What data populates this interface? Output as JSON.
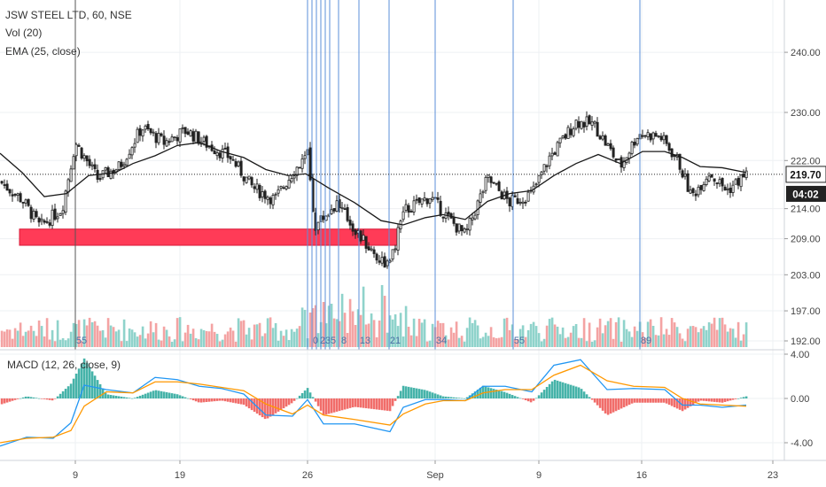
{
  "chart_data": {
    "type": "candlestick",
    "title": "JSW STEEL LTD, 60, NSE",
    "indicators": [
      "Vol (20)",
      "EMA (25, close)"
    ],
    "macd_label": "MACD (12, 26, close, 9)",
    "price_axis_ticks": [
      "240.00",
      "230.00",
      "222.00",
      "214.00",
      "209.00",
      "203.00",
      "197.00",
      "192.00"
    ],
    "price_axis_values": [
      240,
      230,
      222,
      214,
      209,
      203,
      197,
      192
    ],
    "current_price": "219.70",
    "countdown": "04:02",
    "macd_axis_ticks": [
      "4.00",
      "0.00",
      "-4.00"
    ],
    "macd_axis_values": [
      4,
      0,
      -4
    ],
    "x_ticks": [
      "9",
      "19",
      "26",
      "Sep",
      "9",
      "16",
      "23"
    ],
    "x_tick_bars": [
      85,
      203,
      347,
      491,
      608,
      724,
      872
    ],
    "vertical_lines_bars": [
      85,
      347,
      352,
      357,
      362,
      367,
      372,
      382,
      405,
      439,
      491,
      579,
      722
    ],
    "fib_labels": [
      "55",
      "0",
      "2",
      "3",
      "5",
      "8",
      "13",
      "21",
      "34",
      "55",
      "89"
    ],
    "fib_label_bars": [
      92,
      356,
      364,
      370,
      376,
      388,
      412,
      446,
      498,
      586,
      729
    ],
    "red_zone": {
      "x_start_bar": 22,
      "x_end_bar": 449,
      "top_price": 210.6,
      "bottom_price": 207.9
    },
    "price_path": [
      [
        0,
        218.5
      ],
      [
        25,
        215.5
      ],
      [
        45,
        211.0
      ],
      [
        70,
        214.0
      ],
      [
        85,
        225.0
      ],
      [
        110,
        219.0
      ],
      [
        135,
        221.0
      ],
      [
        160,
        227.5
      ],
      [
        185,
        225.0
      ],
      [
        210,
        227.0
      ],
      [
        230,
        225.0
      ],
      [
        260,
        222.5
      ],
      [
        285,
        217.5
      ],
      [
        310,
        215.5
      ],
      [
        330,
        220.0
      ],
      [
        347,
        223.0
      ],
      [
        355,
        211.0
      ],
      [
        380,
        215.0
      ],
      [
        405,
        209.5
      ],
      [
        425,
        206.0
      ],
      [
        440,
        204.5
      ],
      [
        455,
        213.5
      ],
      [
        485,
        216.0
      ],
      [
        505,
        212.5
      ],
      [
        525,
        209.5
      ],
      [
        550,
        219.0
      ],
      [
        575,
        215.0
      ],
      [
        600,
        216.5
      ],
      [
        620,
        222.5
      ],
      [
        650,
        228.5
      ],
      [
        670,
        228.0
      ],
      [
        700,
        221.0
      ],
      [
        720,
        226.5
      ],
      [
        745,
        226.0
      ],
      [
        765,
        222.0
      ],
      [
        780,
        216.0
      ],
      [
        800,
        220.0
      ],
      [
        820,
        217.0
      ],
      [
        842,
        219.7
      ]
    ],
    "ema_path": [
      [
        0,
        223.2
      ],
      [
        25,
        220.0
      ],
      [
        50,
        216.0
      ],
      [
        75,
        216.5
      ],
      [
        100,
        219.5
      ],
      [
        130,
        220.0
      ],
      [
        150,
        221.5
      ],
      [
        175,
        222.8
      ],
      [
        200,
        224.5
      ],
      [
        225,
        225.0
      ],
      [
        250,
        223.5
      ],
      [
        275,
        222.5
      ],
      [
        300,
        220.5
      ],
      [
        325,
        219.5
      ],
      [
        345,
        219.8
      ],
      [
        370,
        217.5
      ],
      [
        400,
        215.0
      ],
      [
        430,
        212.0
      ],
      [
        455,
        211.3
      ],
      [
        480,
        212.5
      ],
      [
        500,
        213.0
      ],
      [
        525,
        212.2
      ],
      [
        550,
        215.2
      ],
      [
        575,
        216.5
      ],
      [
        600,
        217.0
      ],
      [
        625,
        219.5
      ],
      [
        650,
        221.5
      ],
      [
        675,
        223.0
      ],
      [
        700,
        221.5
      ],
      [
        725,
        223.5
      ],
      [
        750,
        223.5
      ],
      [
        770,
        222.5
      ],
      [
        790,
        221.0
      ],
      [
        815,
        220.8
      ],
      [
        842,
        220.0
      ]
    ],
    "macd_line": [
      [
        0,
        -4.3
      ],
      [
        30,
        -3.5
      ],
      [
        60,
        -3.6
      ],
      [
        80,
        -2.2
      ],
      [
        95,
        1.2
      ],
      [
        120,
        0.8
      ],
      [
        150,
        0.5
      ],
      [
        175,
        1.9
      ],
      [
        200,
        1.7
      ],
      [
        225,
        1.1
      ],
      [
        250,
        0.9
      ],
      [
        275,
        0.4
      ],
      [
        300,
        -1.5
      ],
      [
        330,
        -1.6
      ],
      [
        347,
        -0.1
      ],
      [
        365,
        -2.3
      ],
      [
        400,
        -2.3
      ],
      [
        440,
        -3.0
      ],
      [
        455,
        -0.8
      ],
      [
        480,
        -0.1
      ],
      [
        500,
        -0.1
      ],
      [
        525,
        -0.2
      ],
      [
        545,
        1.1
      ],
      [
        570,
        1.1
      ],
      [
        600,
        0.6
      ],
      [
        625,
        3.0
      ],
      [
        655,
        3.5
      ],
      [
        685,
        0.8
      ],
      [
        715,
        0.9
      ],
      [
        750,
        0.8
      ],
      [
        770,
        -0.6
      ],
      [
        790,
        -0.6
      ],
      [
        815,
        -0.8
      ],
      [
        842,
        -0.6
      ]
    ],
    "signal_line": [
      [
        0,
        -4.0
      ],
      [
        30,
        -3.6
      ],
      [
        60,
        -3.5
      ],
      [
        80,
        -2.9
      ],
      [
        95,
        -0.7
      ],
      [
        120,
        0.6
      ],
      [
        150,
        0.5
      ],
      [
        175,
        1.5
      ],
      [
        200,
        1.5
      ],
      [
        225,
        1.3
      ],
      [
        250,
        1.0
      ],
      [
        275,
        0.7
      ],
      [
        300,
        -0.5
      ],
      [
        330,
        -1.4
      ],
      [
        347,
        -0.6
      ],
      [
        365,
        -1.5
      ],
      [
        400,
        -1.9
      ],
      [
        440,
        -2.4
      ],
      [
        455,
        -1.4
      ],
      [
        480,
        -0.5
      ],
      [
        500,
        -0.2
      ],
      [
        525,
        -0.2
      ],
      [
        545,
        0.5
      ],
      [
        570,
        0.8
      ],
      [
        600,
        0.8
      ],
      [
        625,
        2.1
      ],
      [
        655,
        3.0
      ],
      [
        685,
        1.6
      ],
      [
        715,
        1.1
      ],
      [
        750,
        1.0
      ],
      [
        770,
        0.0
      ],
      [
        790,
        -0.5
      ],
      [
        815,
        -0.6
      ],
      [
        842,
        -0.7
      ]
    ],
    "colors": {
      "up": "#26a69a",
      "down": "#ef5350",
      "macd": "#2196f3",
      "signal": "#ff9800",
      "ema": "#1a1a1a",
      "vlines": "#5b8fd8",
      "zone": "#ff3b57"
    }
  }
}
